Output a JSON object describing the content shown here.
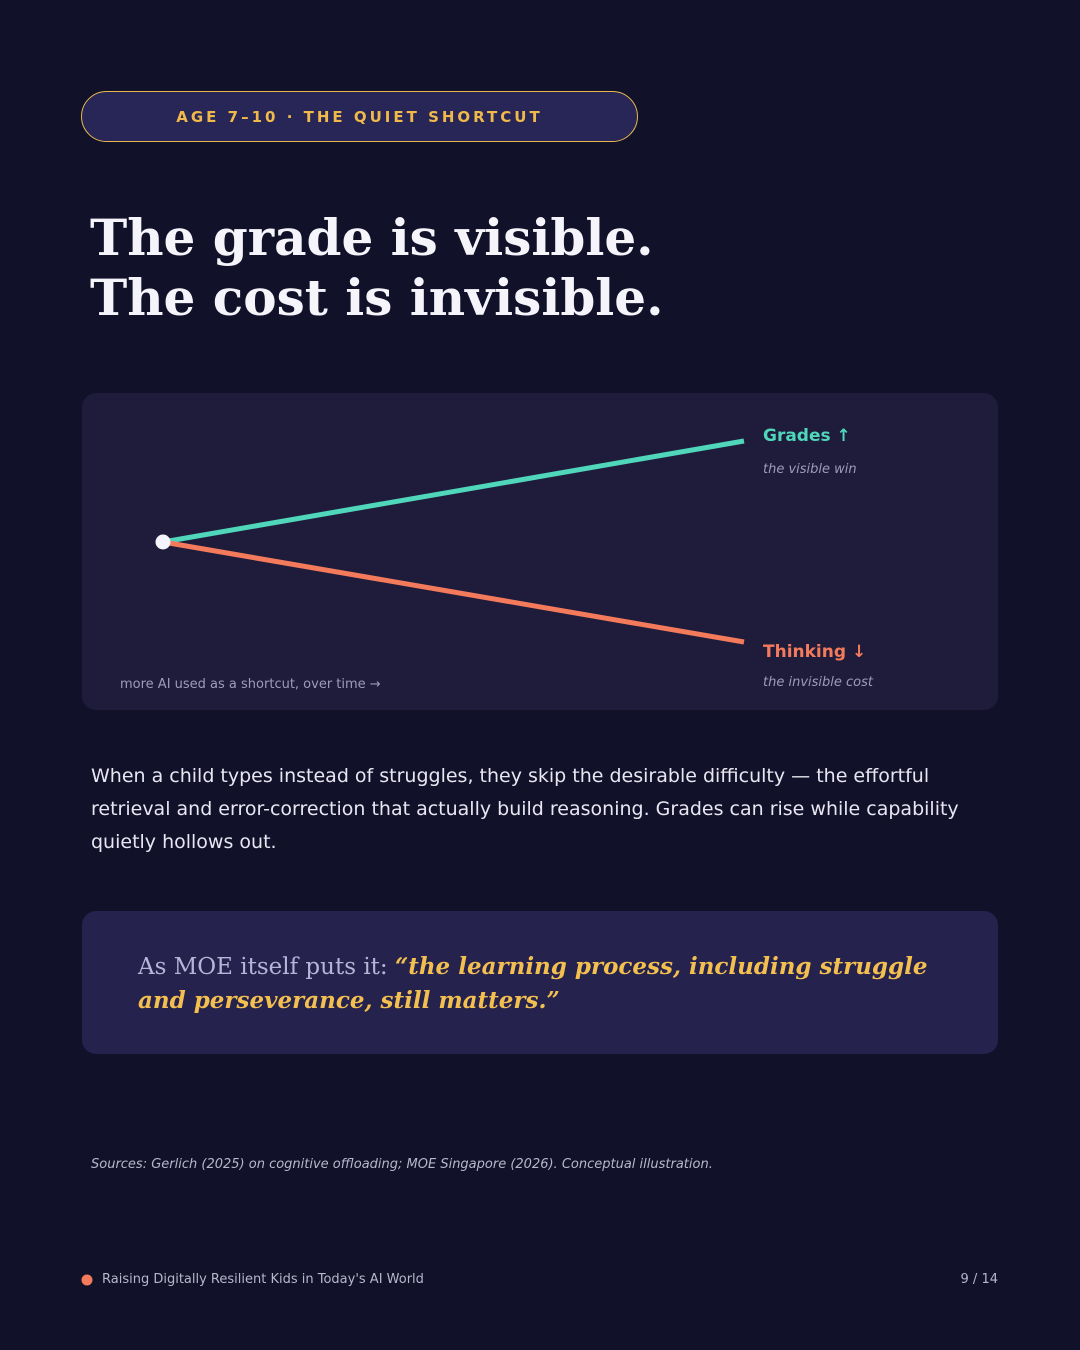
{
  "badge": "AGE 7–10 · THE QUIET SHORTCUT",
  "title": {
    "line1": "The grade is visible.",
    "line2": "The cost is invisible."
  },
  "diagram": {
    "up": {
      "label": "Grades ↑",
      "note": "the visible win"
    },
    "down": {
      "label": "Thinking ↓",
      "note": "the invisible cost"
    },
    "axis_note": "more AI used as a shortcut, over time →"
  },
  "body": "When a child types instead of struggles, they skip the desirable difficulty — the effortful retrieval and error-correction that actually build reasoning. Grades can rise while capability quietly hollows out.",
  "quote": {
    "lead": "As MOE itself puts it: ",
    "emphasis": "“the learning process, including struggle and perseverance, still matters.”"
  },
  "sources": "Sources: Gerlich (2025) on cognitive offloading; MOE Singapore (2026). Conceptual illustration.",
  "footer": {
    "title": "Raising Digitally Resilient Kids in Today's AI World",
    "page": "9 / 14"
  }
}
